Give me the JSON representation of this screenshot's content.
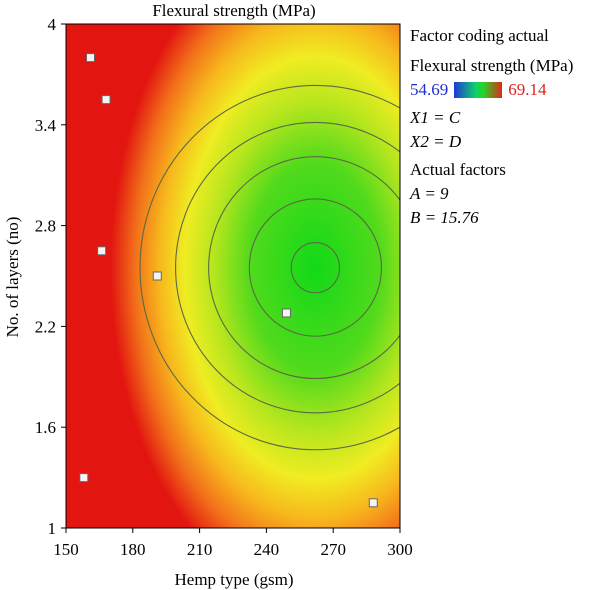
{
  "chart_data": {
    "type": "contour",
    "title": "Flexural strength (MPa)",
    "xlabel": "Hemp type (gsm)",
    "ylabel": "No. of layers (no)",
    "xlim": [
      150,
      300
    ],
    "ylim": [
      1,
      4
    ],
    "x_ticks": [
      "150",
      "180",
      "210",
      "240",
      "270",
      "300"
    ],
    "y_ticks": [
      "1",
      "1.6",
      "2.2",
      "2.8",
      "3.4",
      "4"
    ],
    "color_scale": {
      "min": 54.69,
      "max": 69.14,
      "low_color": "#1f2fd0",
      "high_color": "#e0201a"
    },
    "surface_center": {
      "x": 262,
      "y": 2.55
    },
    "contour_levels": 5,
    "design_points": [
      {
        "x": 161,
        "y": 3.8
      },
      {
        "x": 168,
        "y": 3.55
      },
      {
        "x": 166,
        "y": 2.65
      },
      {
        "x": 191,
        "y": 2.5
      },
      {
        "x": 249,
        "y": 2.28
      },
      {
        "x": 158,
        "y": 1.3
      },
      {
        "x": 288,
        "y": 1.15
      }
    ]
  },
  "legend": {
    "factor_coding": "Factor coding actual",
    "response": "Flexural strength (MPa)",
    "min_label": "54.69",
    "max_label": "69.14",
    "x1": "X1 = C",
    "x2": "X2 = D",
    "actual_factors": "Actual factors",
    "a_value": "A = 9",
    "b_value": "B = 15.76"
  }
}
